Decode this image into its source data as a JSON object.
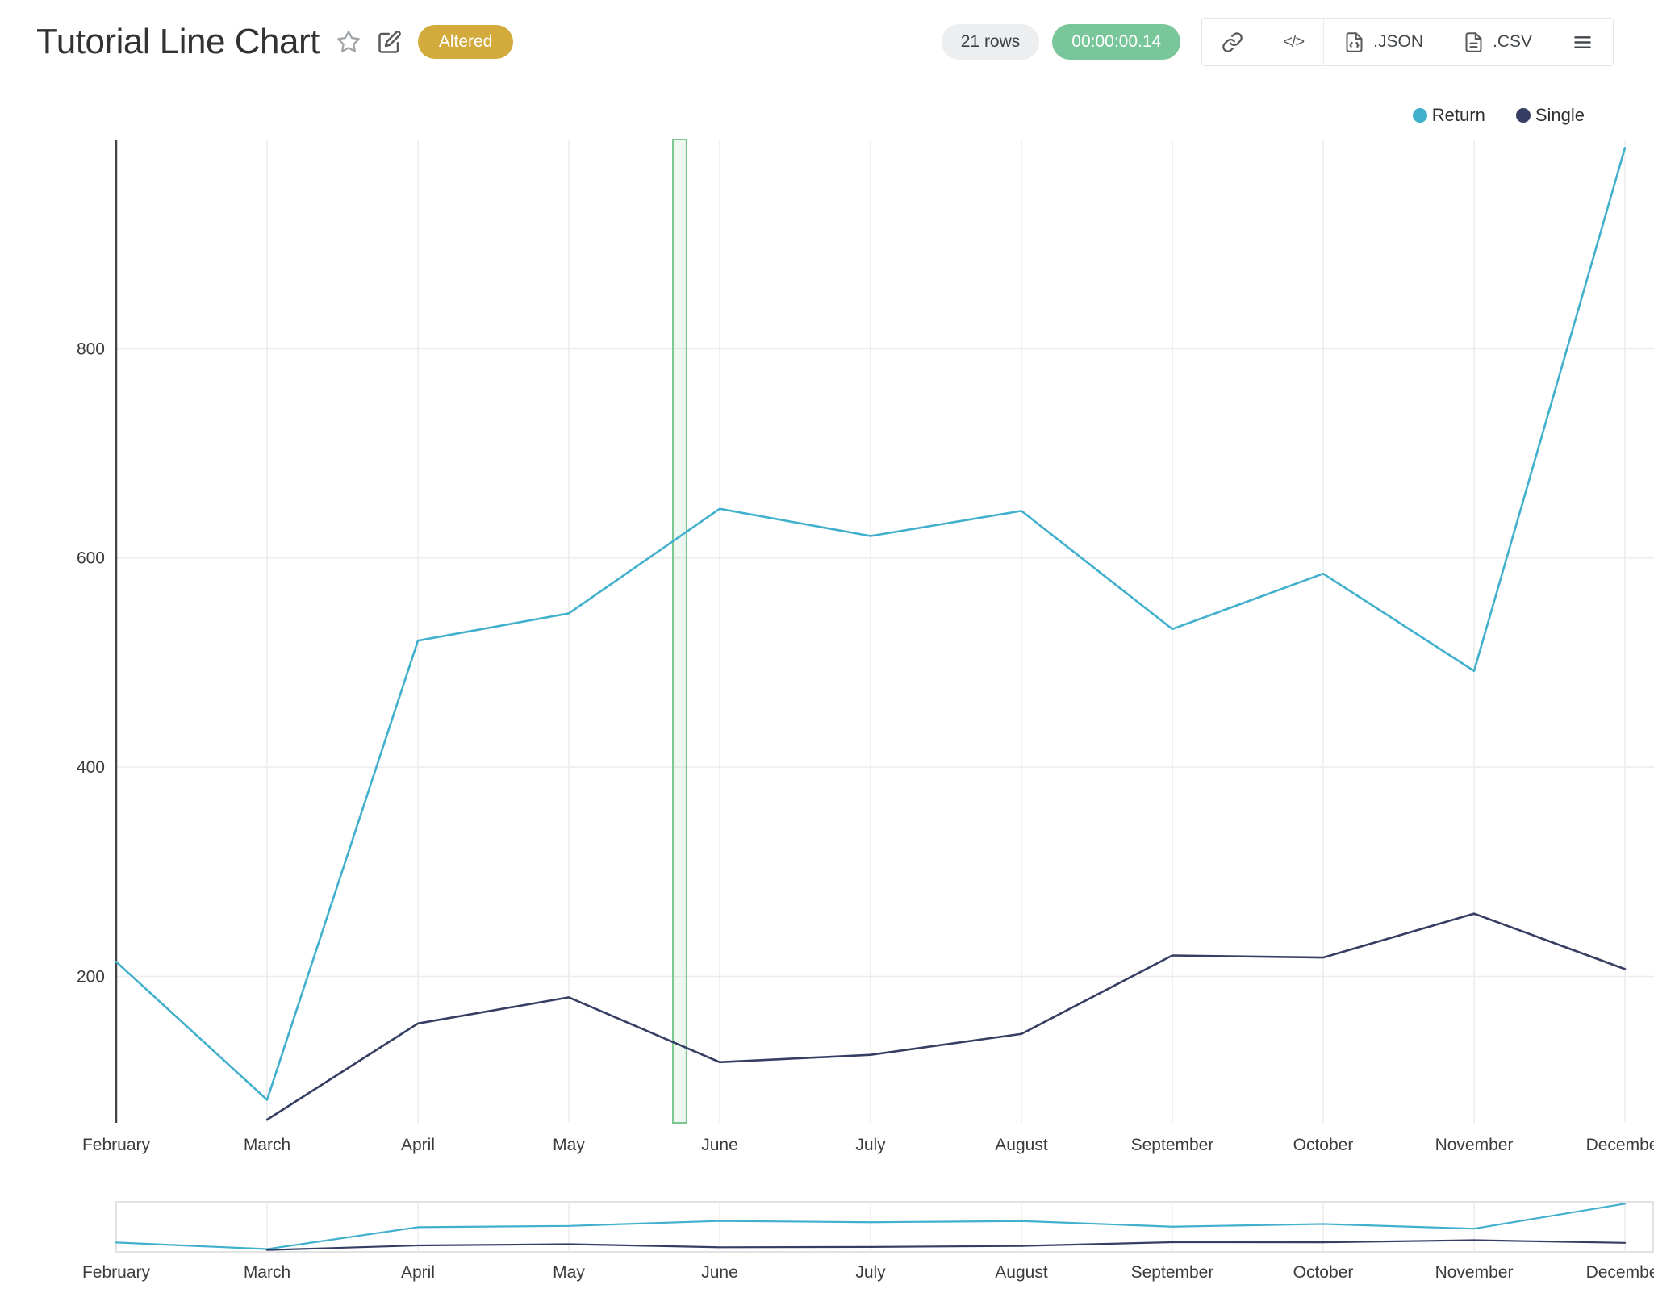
{
  "header": {
    "title": "Tutorial Line Chart",
    "altered_badge": "Altered",
    "rows_badge": "21 rows",
    "time_badge": "00:00:00.14",
    "code_button_label": "</>",
    "json_button_label": ".JSON",
    "csv_button_label": ".CSV"
  },
  "colors": {
    "altered_badge_bg": "#d2ab3c",
    "rows_badge_bg": "#eceef0",
    "time_badge_bg": "#79c69a",
    "return_series": "#41b0cc",
    "single_series": "#363e64",
    "selection_band": "#7bc793",
    "gridline": "#ececec",
    "axis_line": "#444444"
  },
  "legend": {
    "items": [
      {
        "label": "Return",
        "color": "#41b0cc"
      },
      {
        "label": "Single",
        "color": "#363e64"
      }
    ]
  },
  "chart_data": {
    "type": "line",
    "title": "Tutorial Line Chart",
    "x": [
      "February",
      "March",
      "April",
      "May",
      "June",
      "July",
      "August",
      "September",
      "October",
      "November",
      "December"
    ],
    "series": [
      {
        "name": "Return",
        "color": "#41b0cc",
        "values": [
          214,
          82,
          521,
          547,
          647,
          621,
          645,
          532,
          585,
          492,
          992
        ]
      },
      {
        "name": "Single",
        "color": "#363e64",
        "values": [
          null,
          63,
          155,
          180,
          118,
          125,
          145,
          220,
          218,
          260,
          207
        ]
      }
    ],
    "yticks": [
      200,
      400,
      600,
      800
    ],
    "ylim": [
      60,
      1000
    ],
    "grid": true,
    "legend_position": "top-right",
    "selection_band": {
      "from_x_index": 3.69,
      "to_x_index": 3.78
    },
    "range_slider": true
  }
}
